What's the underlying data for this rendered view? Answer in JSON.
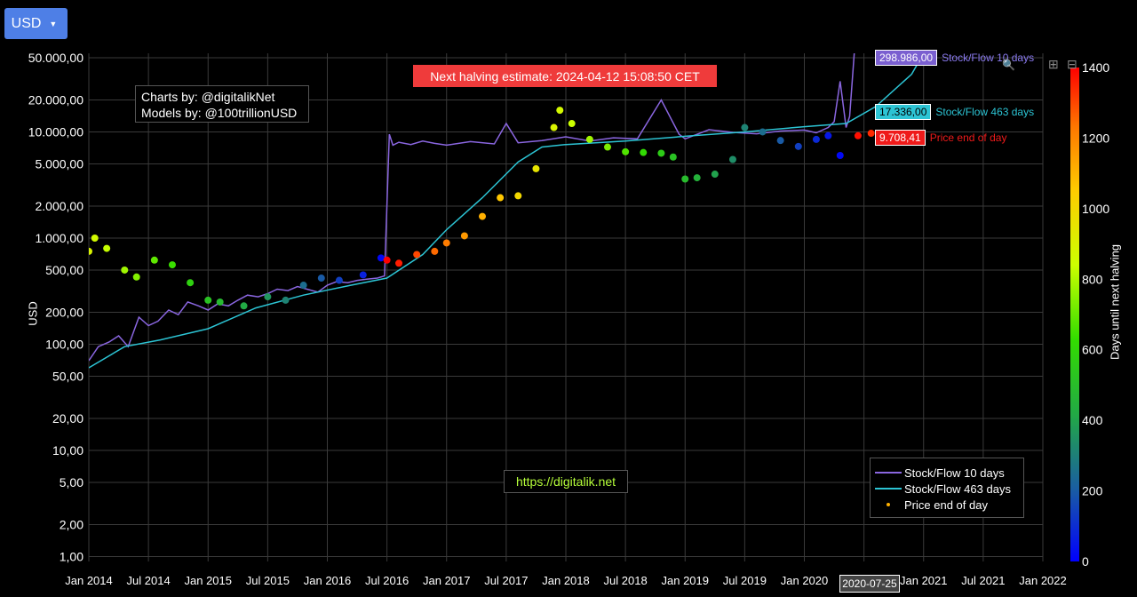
{
  "currency_button": {
    "label": "USD"
  },
  "credits": {
    "line1": "Charts by: @digitalikNet",
    "line2": "Models by: @100trillionUSD"
  },
  "halving_banner": "Next halving estimate: 2024-04-12 15:08:50 CET",
  "url_label": "https://digitalik.net",
  "hover_date": "2020-07-25",
  "legend": {
    "sf10": "Stock/Flow 10 days",
    "sf463": "Stock/Flow 463 days",
    "price": "Price end of day"
  },
  "tags": {
    "sf10_value": "298.986,00",
    "sf10_label": "Stock/Flow 10 days",
    "sf463_value": "17.336,00",
    "sf463_label": "Stock/Flow 463 days",
    "price_value": "9.708,41",
    "price_label": "Price end of day"
  },
  "colors": {
    "sf10": "#8a66e0",
    "sf463": "#2cc4d4",
    "price_tag": "#ef1a1a",
    "button": "#4e7fe6",
    "halving_banner": "#ef3b3b",
    "url_text": "#b6ff3a"
  },
  "chart_data": {
    "type": "scatter",
    "yscale": "log",
    "ylabel": "USD",
    "colorbar_title": "Days until next halving",
    "colorbar_range": [
      0,
      1400
    ],
    "colorbar_ticks": [
      "0",
      "200",
      "400",
      "600",
      "800",
      "1000",
      "1200",
      "1400"
    ],
    "colorbar_tick_values": [
      0,
      200,
      400,
      600,
      800,
      1000,
      1200,
      1400
    ],
    "y_ticks": [
      "1,00",
      "2,00",
      "5,00",
      "10,00",
      "20,00",
      "50,00",
      "100,00",
      "200,00",
      "500,00",
      "1.000,00",
      "2.000,00",
      "5.000,00",
      "10.000,00",
      "20.000,00",
      "50.000,00"
    ],
    "y_tick_values": [
      1,
      2,
      5,
      10,
      20,
      50,
      100,
      200,
      500,
      1000,
      2000,
      5000,
      10000,
      20000,
      50000
    ],
    "x_ticks": [
      "Jan 2014",
      "Jul 2014",
      "Jan 2015",
      "Jul 2015",
      "Jan 2016",
      "Jul 2016",
      "Jan 2017",
      "Jul 2017",
      "Jan 2018",
      "Jul 2018",
      "Jan 2019",
      "Jul 2019",
      "Jan 2020",
      "Jul 2020",
      "Jan 2021",
      "Jul 2021",
      "Jan 2022"
    ],
    "x_tick_values": [
      2014.0,
      2014.5,
      2015.0,
      2015.5,
      2016.0,
      2016.5,
      2017.0,
      2017.5,
      2018.0,
      2018.5,
      2019.0,
      2019.5,
      2020.0,
      2020.5,
      2021.0,
      2021.5,
      2022.0
    ],
    "xlim": [
      2014.0,
      2022.0
    ],
    "ylim": [
      0.9,
      55000
    ],
    "legend_position": "bottom-right",
    "grid": true,
    "series": [
      {
        "name": "Stock/Flow 10 days",
        "x": [
          2014.0,
          2014.08,
          2014.17,
          2014.25,
          2014.33,
          2014.42,
          2014.5,
          2014.58,
          2014.67,
          2014.75,
          2014.83,
          2014.92,
          2015.0,
          2015.08,
          2015.17,
          2015.25,
          2015.33,
          2015.42,
          2015.5,
          2015.58,
          2015.67,
          2015.75,
          2015.83,
          2015.92,
          2016.0,
          2016.08,
          2016.17,
          2016.25,
          2016.33,
          2016.42,
          2016.48,
          2016.52,
          2016.55,
          2016.6,
          2016.7,
          2016.8,
          2016.9,
          2017.0,
          2017.2,
          2017.4,
          2017.5,
          2017.6,
          2017.8,
          2018.0,
          2018.2,
          2018.4,
          2018.6,
          2018.8,
          2018.95,
          2019.0,
          2019.2,
          2019.4,
          2019.6,
          2019.8,
          2020.0,
          2020.1,
          2020.2,
          2020.25,
          2020.3,
          2020.35,
          2020.38,
          2020.42
        ],
        "y": [
          70,
          95,
          105,
          120,
          95,
          180,
          150,
          165,
          210,
          190,
          250,
          230,
          210,
          240,
          230,
          260,
          290,
          280,
          300,
          330,
          320,
          350,
          330,
          310,
          360,
          390,
          380,
          400,
          410,
          420,
          440,
          9500,
          7500,
          8000,
          7600,
          8200,
          7800,
          7500,
          8100,
          7700,
          12000,
          7900,
          8300,
          9000,
          8200,
          8800,
          8600,
          20000,
          9500,
          8600,
          10500,
          9900,
          9600,
          10200,
          10400,
          9800,
          11000,
          12500,
          30000,
          11000,
          14000,
          58000
        ]
      },
      {
        "name": "Stock/Flow 463 days",
        "x": [
          2014.0,
          2014.3,
          2014.6,
          2015.0,
          2015.4,
          2015.8,
          2016.2,
          2016.5,
          2016.8,
          2017.0,
          2017.3,
          2017.6,
          2017.8,
          2018.0,
          2018.5,
          2019.0,
          2019.5,
          2020.0,
          2020.35,
          2020.6,
          2020.9,
          2021.0
        ],
        "y": [
          60,
          95,
          110,
          140,
          220,
          290,
          360,
          420,
          700,
          1200,
          2400,
          5200,
          7200,
          7600,
          8200,
          9100,
          10000,
          11200,
          12000,
          17336,
          35000,
          55000
        ]
      },
      {
        "name": "Price end of day",
        "x": [
          2014.0,
          2014.05,
          2014.15,
          2014.3,
          2014.4,
          2014.55,
          2014.7,
          2014.85,
          2015.0,
          2015.1,
          2015.3,
          2015.5,
          2015.65,
          2015.8,
          2015.95,
          2016.1,
          2016.3,
          2016.45,
          2016.5,
          2016.6,
          2016.75,
          2016.9,
          2017.0,
          2017.15,
          2017.3,
          2017.45,
          2017.6,
          2017.75,
          2017.9,
          2017.95,
          2018.05,
          2018.2,
          2018.35,
          2018.5,
          2018.65,
          2018.8,
          2018.9,
          2019.0,
          2019.1,
          2019.25,
          2019.4,
          2019.5,
          2019.65,
          2019.8,
          2019.95,
          2020.1,
          2020.2,
          2020.3,
          2020.45,
          2020.56
        ],
        "y": [
          750,
          1000,
          800,
          500,
          430,
          620,
          560,
          380,
          260,
          250,
          230,
          280,
          260,
          360,
          420,
          400,
          450,
          650,
          620,
          580,
          700,
          750,
          900,
          1050,
          1600,
          2400,
          2500,
          4500,
          11000,
          16000,
          12000,
          8500,
          7200,
          6500,
          6400,
          6300,
          5800,
          3600,
          3700,
          4000,
          5500,
          11000,
          10000,
          8300,
          7300,
          8500,
          9200,
          6000,
          9200,
          9708.41
        ],
        "days_until_halving": [
          890,
          860,
          830,
          780,
          740,
          690,
          640,
          580,
          520,
          480,
          420,
          360,
          310,
          250,
          200,
          140,
          70,
          20,
          1400,
          1360,
          1300,
          1250,
          1220,
          1160,
          1110,
          1060,
          1000,
          950,
          890,
          870,
          840,
          780,
          730,
          670,
          620,
          560,
          520,
          490,
          450,
          400,
          340,
          310,
          250,
          200,
          140,
          90,
          50,
          20,
          1380,
          1340
        ]
      }
    ]
  }
}
